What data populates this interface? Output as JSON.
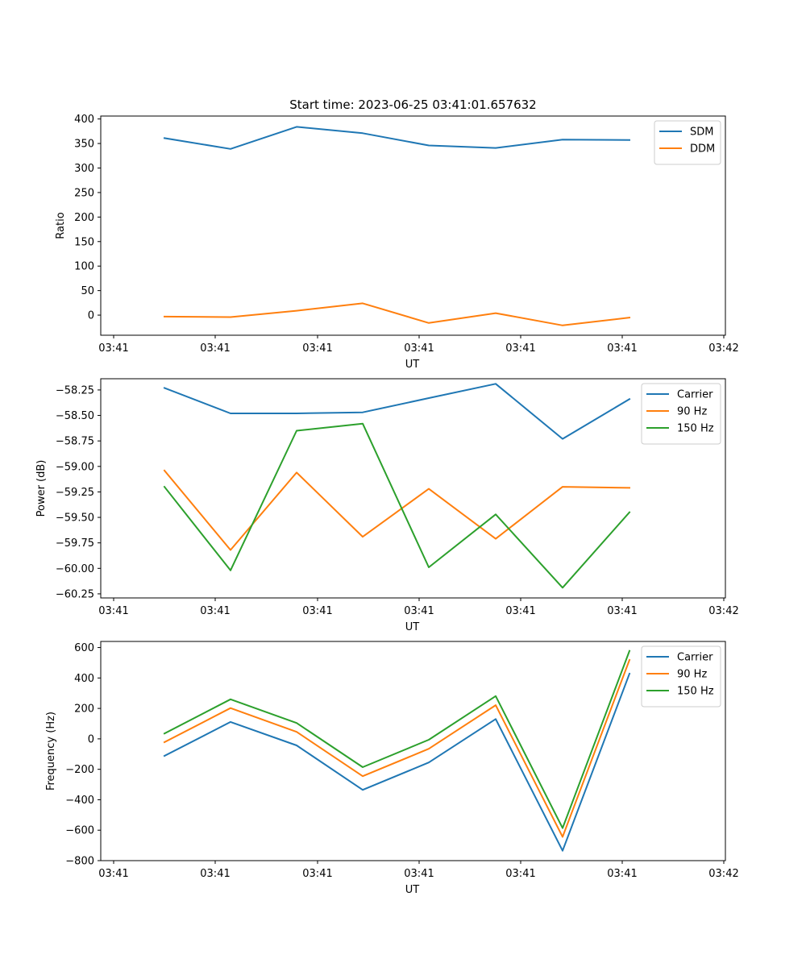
{
  "chart_data": [
    {
      "type": "line",
      "title": "Start time: 2023-06-25 03:41:01.657632",
      "xlabel": "UT",
      "ylabel": "Ratio",
      "x_tick_labels": [
        "03:41",
        "03:41",
        "03:41",
        "03:41",
        "03:41",
        "03:41",
        "03:42"
      ],
      "ylim": [
        -41,
        406
      ],
      "y_ticks": [
        0,
        50,
        100,
        150,
        200,
        250,
        300,
        350,
        400
      ],
      "y_tick_labels": [
        "0",
        "50",
        "100",
        "150",
        "200",
        "250",
        "300",
        "350",
        "400"
      ],
      "grid": false,
      "legend_position": "top-right",
      "series": [
        {
          "name": "SDM",
          "color": "#1f77b4",
          "values": [
            361,
            339,
            384,
            371,
            346,
            341,
            358,
            357
          ]
        },
        {
          "name": "DDM",
          "color": "#ff7f0e",
          "values": [
            -3,
            -4,
            9,
            24,
            -16,
            4,
            -21,
            -5
          ]
        }
      ]
    },
    {
      "type": "line",
      "title": "",
      "xlabel": "UT",
      "ylabel": "Power (dB)",
      "x_tick_labels": [
        "03:41",
        "03:41",
        "03:41",
        "03:41",
        "03:41",
        "03:41",
        "03:42"
      ],
      "ylim": [
        -60.29,
        -58.14
      ],
      "y_ticks": [
        -60.25,
        -60.0,
        -59.75,
        -59.5,
        -59.25,
        -59.0,
        -58.75,
        -58.5,
        -58.25
      ],
      "y_tick_labels": [
        "−60.25",
        "−60.00",
        "−59.75",
        "−59.50",
        "−59.25",
        "−59.00",
        "−58.75",
        "−58.50",
        "−58.25"
      ],
      "grid": false,
      "legend_position": "top-right",
      "series": [
        {
          "name": "Carrier",
          "color": "#1f77b4",
          "values": [
            -58.23,
            -58.48,
            -58.48,
            -58.47,
            -58.33,
            -58.19,
            -58.73,
            -58.34
          ]
        },
        {
          "name": "90 Hz",
          "color": "#ff7f0e",
          "values": [
            -59.04,
            -59.82,
            -59.06,
            -59.69,
            -59.22,
            -59.71,
            -59.2,
            -59.21
          ]
        },
        {
          "name": "150 Hz",
          "color": "#2ca02c",
          "values": [
            -59.2,
            -60.02,
            -58.65,
            -58.58,
            -59.99,
            -59.47,
            -60.19,
            -59.45
          ]
        }
      ]
    },
    {
      "type": "line",
      "title": "",
      "xlabel": "UT",
      "ylabel": "Frequency (Hz)",
      "x_tick_labels": [
        "03:41",
        "03:41",
        "03:41",
        "03:41",
        "03:41",
        "03:41",
        "03:42"
      ],
      "ylim": [
        -800,
        640
      ],
      "y_ticks": [
        -800,
        -600,
        -400,
        -200,
        0,
        200,
        400,
        600
      ],
      "y_tick_labels": [
        "−800",
        "−600",
        "−400",
        "−200",
        "0",
        "200",
        "400",
        "600"
      ],
      "grid": false,
      "legend_position": "top-right",
      "series": [
        {
          "name": "Carrier",
          "color": "#1f77b4",
          "values": [
            -112,
            111,
            -43,
            -335,
            -155,
            130,
            -735,
            428
          ]
        },
        {
          "name": "90 Hz",
          "color": "#ff7f0e",
          "values": [
            -22,
            202,
            46,
            -245,
            -65,
            221,
            -644,
            519
          ]
        },
        {
          "name": "150 Hz",
          "color": "#2ca02c",
          "values": [
            35,
            260,
            104,
            -186,
            -6,
            281,
            -586,
            578
          ]
        }
      ]
    }
  ]
}
